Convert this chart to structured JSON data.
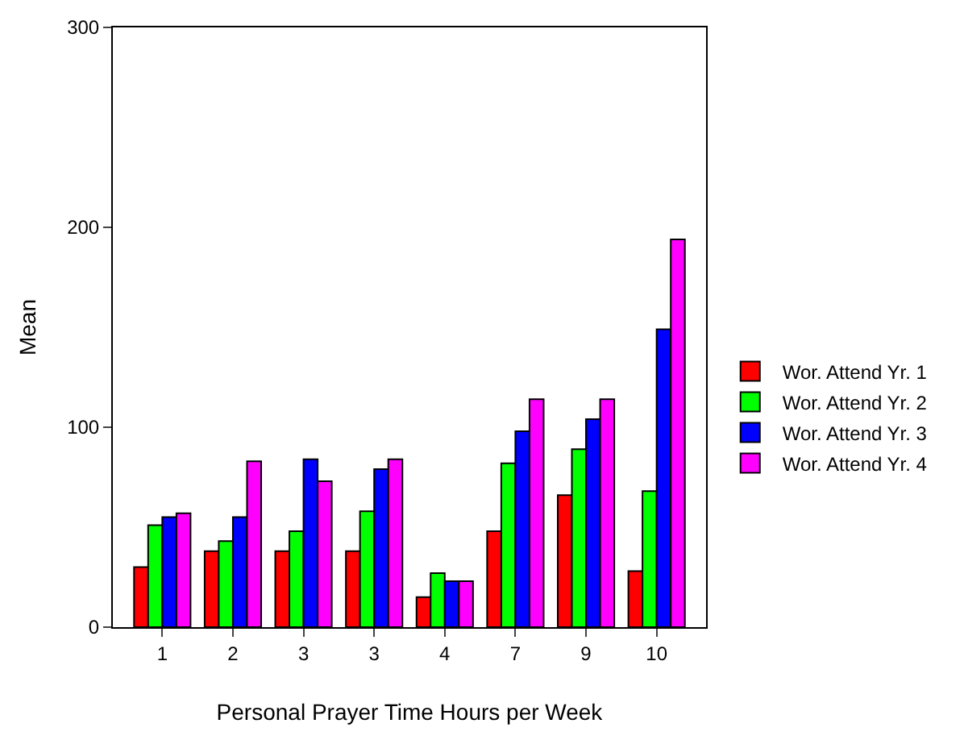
{
  "chart_data": {
    "type": "bar",
    "xlabel": "Personal Prayer Time Hours per Week",
    "ylabel": "Mean",
    "categories": [
      "1",
      "2",
      "3",
      "3",
      "4",
      "7",
      "9",
      "10"
    ],
    "series": [
      {
        "name": "Wor. Attend Yr. 1",
        "color": "#ff0000",
        "values": [
          30,
          38,
          38,
          38,
          15,
          48,
          66,
          28
        ]
      },
      {
        "name": "Wor. Attend Yr. 2",
        "color": "#00ff00",
        "values": [
          51,
          43,
          48,
          58,
          27,
          82,
          89,
          68
        ]
      },
      {
        "name": "Wor. Attend Yr. 3",
        "color": "#0000ff",
        "values": [
          55,
          55,
          84,
          79,
          23,
          98,
          104,
          149
        ]
      },
      {
        "name": "Wor. Attend Yr. 4",
        "color": "#ff00ff",
        "values": [
          57,
          83,
          73,
          84,
          23,
          114,
          114,
          194
        ]
      }
    ],
    "ylim": [
      0,
      300
    ],
    "yticks": [
      0,
      100,
      200,
      300
    ],
    "legend": "right"
  }
}
